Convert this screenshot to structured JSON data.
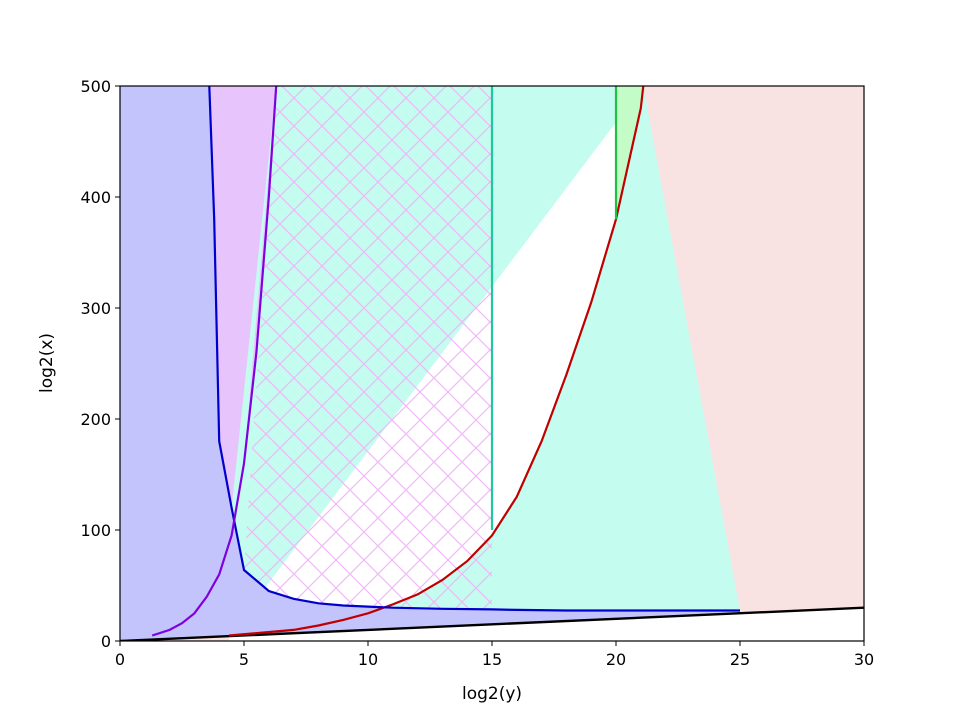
{
  "chart_data": {
    "type": "area",
    "title": "",
    "xlabel": "log2(y)",
    "ylabel": "log2(x)",
    "xlim": [
      0,
      30
    ],
    "ylim": [
      0,
      500
    ],
    "xticks": [
      0,
      5,
      10,
      15,
      20,
      25,
      30
    ],
    "yticks": [
      0,
      100,
      200,
      300,
      400,
      500
    ],
    "grid": false,
    "colors": {
      "region_blue_fill": "#c4c4fc",
      "region_violet_fill": "#e8c4fc",
      "region_cyan_fill": "#c4fcf0",
      "region_green_fill": "#c4fcc8",
      "region_pink_fill": "#f9e2e2",
      "hatch": "#f0b8f8",
      "line_black": "#000000",
      "line_red": "#c00000",
      "line_blue": "#0000cc",
      "line_violet": "#8000e0",
      "line_teal": "#20c8a0",
      "line_green": "#20c040"
    },
    "series": [
      {
        "color": "#000000",
        "x": [
          0,
          30
        ],
        "y": [
          0,
          30
        ]
      },
      {
        "color": "#c00000",
        "x": [
          4.4,
          7,
          8,
          9,
          10,
          11,
          12,
          13,
          14,
          15,
          16,
          17,
          18,
          19,
          20,
          21,
          21.1
        ],
        "y": [
          5,
          10,
          14,
          19,
          25,
          33,
          42,
          55,
          72,
          95,
          130,
          180,
          240,
          305,
          380,
          480,
          500
        ]
      },
      {
        "color": "#0000cc",
        "x": [
          3.6,
          3.8,
          4,
          4.5,
          5,
          6,
          7,
          8,
          9,
          10,
          11,
          13,
          15,
          16,
          18,
          20,
          22,
          25
        ],
        "y": [
          500,
          380,
          180,
          120,
          64,
          45,
          38,
          34,
          32,
          31,
          30,
          29,
          28.5,
          28,
          27.5,
          27.5,
          27.5,
          27.5
        ]
      },
      {
        "color": "#8000e0",
        "x": [
          1.3,
          2,
          2.5,
          3,
          3.5,
          4,
          4.5,
          5,
          5.5,
          6,
          6.3
        ],
        "y": [
          5,
          10,
          16,
          25,
          40,
          60,
          95,
          160,
          260,
          400,
          500
        ]
      },
      {
        "color": "#20c8a0",
        "x": [
          15,
          15
        ],
        "y": [
          100,
          500
        ]
      },
      {
        "color": "#20c040",
        "x": [
          20,
          20
        ],
        "y": [
          380,
          500
        ]
      }
    ],
    "hatched_region": {
      "x_from": 5,
      "x_to": 15,
      "pattern": "cross-diagonal"
    }
  }
}
